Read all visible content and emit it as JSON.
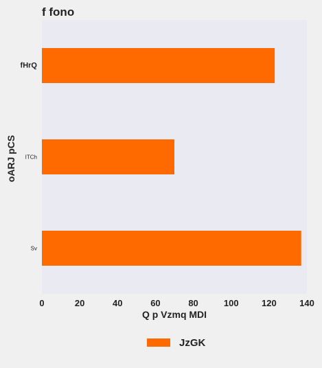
{
  "chart_data": {
    "type": "bar",
    "orientation": "horizontal",
    "title": "f fono",
    "xlabel": "Q p  Vzmq MDI",
    "ylabel": "oARJ  pCS",
    "categories": [
      "fHrQ",
      "ITCh",
      "Sv"
    ],
    "series": [
      {
        "name": "JzGK",
        "values": [
          123,
          70,
          137
        ],
        "color": "#ff6a00"
      }
    ],
    "xlim": [
      0,
      140
    ],
    "xticks": [
      "0",
      "20",
      "40",
      "60",
      "80",
      "100",
      "120",
      "140"
    ],
    "grid": false,
    "legend_position": "bottom-center",
    "plot_background": "#eaeaf2",
    "page_background": "#f0f0f0"
  }
}
